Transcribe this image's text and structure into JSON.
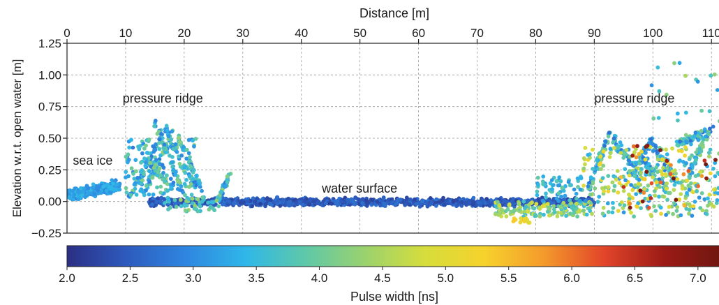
{
  "chart_data": {
    "type": "scatter",
    "top_axis": {
      "label": "Distance [m]",
      "ticks": [
        0,
        10,
        20,
        30,
        40,
        50,
        60,
        70,
        80,
        90,
        100,
        110
      ],
      "range": [
        0,
        112
      ]
    },
    "y_axis": {
      "label": "Elevation w.r.t. open water [m]",
      "ticks": [
        -0.25,
        0.0,
        0.25,
        0.5,
        0.75,
        1.0,
        1.25
      ],
      "tick_labels": [
        "−0.25",
        "0.00",
        "0.25",
        "0.50",
        "0.75",
        "1.00",
        "1.25"
      ],
      "range": [
        -0.25,
        1.25
      ]
    },
    "grid": true,
    "annotations": [
      {
        "text": "sea ice",
        "x": 1.0,
        "y": 0.29
      },
      {
        "text": "pressure ridge",
        "x": 9.5,
        "y": 0.78
      },
      {
        "text": "water surface",
        "x": 43.5,
        "y": 0.07
      },
      {
        "text": "pressure ridge",
        "x": 90.0,
        "y": 0.78
      }
    ],
    "color_variable": "pulse width",
    "colorbar": {
      "label": "Pulse width [ns]",
      "ticks": [
        2.0,
        2.5,
        3.0,
        3.5,
        4.0,
        4.5,
        5.0,
        5.5,
        6.0,
        6.5,
        7.0
      ],
      "tick_labels": [
        "2.0",
        "2.5",
        "3.0",
        "3.5",
        "4.0",
        "4.5",
        "5.0",
        "5.5",
        "6.0",
        "6.5",
        "7.0"
      ],
      "range": [
        2.0,
        7.2
      ],
      "colormap": "jet",
      "colors": [
        "#2b2f84",
        "#2d5bbd",
        "#2f86e0",
        "#2fb7e8",
        "#5fc8a8",
        "#9bd26e",
        "#d6dd3c",
        "#f6d22c",
        "#f49a2b",
        "#e2452a",
        "#9c1b16",
        "#6e1610"
      ]
    },
    "regions": [
      {
        "name": "sea ice",
        "x_range": [
          0,
          8
        ],
        "typical_elevation": [
          0.02,
          0.15
        ],
        "typical_pulse_width": [
          2.9,
          3.4
        ]
      },
      {
        "name": "pressure ridge 1",
        "x_range": [
          8,
          28
        ],
        "peak_elevation": 0.65,
        "typical_pulse_width": [
          2.8,
          4.2
        ]
      },
      {
        "name": "water surface",
        "x_range": [
          14,
          90
        ],
        "typical_elevation": [
          -0.03,
          0.02
        ],
        "typical_pulse_width": [
          2.1,
          2.7
        ]
      },
      {
        "name": "pressure ridge 2",
        "x_range": [
          88,
          112
        ],
        "peak_elevation": 1.1,
        "typical_pulse_width": [
          2.8,
          7.0
        ]
      }
    ]
  }
}
